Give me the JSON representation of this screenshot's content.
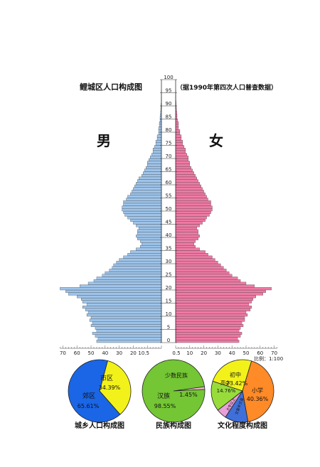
{
  "title": "鲤城区人口构成图",
  "subtitle": "（据1990年第四次人口普查数据）",
  "male_label": "男",
  "female_label": "女",
  "scale_label": "比例：1:100",
  "colors": {
    "male": "#9ec4ea",
    "female": "#ee7aa4",
    "bar_outline": "#333333",
    "urban": "#f2f21a",
    "rural": "#1a66e6",
    "minority": "#f0b8c8",
    "han": "#74c634",
    "junior": "#f2f21a",
    "senior": "#98dc3c",
    "primary": "#ff8a28",
    "college": "#e8a0d8",
    "illiterate": "#3f6fd9"
  },
  "chart_data": [
    {
      "type": "bar",
      "orientation": "horizontal-pyramid",
      "title": "鲤城区人口构成图",
      "subtitle": "（据1990年第四次人口普查数据）",
      "age_axis": {
        "ticks": [
          "0",
          "5",
          "10",
          "15",
          "20",
          "25",
          "30",
          "35",
          "40",
          "45",
          "50",
          "55",
          "60",
          "65",
          "70",
          "75",
          "80",
          "85",
          "90",
          "95",
          "100"
        ],
        "range": [
          0,
          100
        ]
      },
      "x_axis": {
        "left_ticks": [
          "70",
          "60",
          "50",
          "40",
          "30",
          "20",
          "10.5"
        ],
        "right_ticks": [
          "0.5",
          "10",
          "20",
          "30",
          "40",
          "50",
          "60",
          "70"
        ],
        "range": [
          0,
          75
        ]
      },
      "ages": [
        0,
        1,
        2,
        3,
        4,
        5,
        6,
        7,
        8,
        9,
        10,
        11,
        12,
        13,
        14,
        15,
        16,
        17,
        18,
        19,
        20,
        21,
        22,
        23,
        24,
        25,
        26,
        27,
        28,
        29,
        30,
        31,
        32,
        33,
        34,
        35,
        36,
        37,
        38,
        39,
        40,
        41,
        42,
        43,
        44,
        45,
        46,
        47,
        48,
        49,
        50,
        51,
        52,
        53,
        54,
        55,
        56,
        57,
        58,
        59,
        60,
        61,
        62,
        63,
        64,
        65,
        66,
        67,
        68,
        69,
        70,
        71,
        72,
        73,
        74,
        75,
        76,
        77,
        78,
        79,
        80,
        81,
        82,
        83,
        84,
        85,
        86,
        87,
        88,
        89,
        90,
        91,
        92,
        93,
        94,
        95,
        96,
        97,
        98,
        99,
        100
      ],
      "series": [
        {
          "name": "男",
          "values": [
            46,
            45,
            47,
            49,
            46,
            47,
            50,
            49,
            51,
            50,
            53,
            52,
            54,
            56,
            53,
            56,
            57,
            60,
            66,
            68,
            72,
            58,
            52,
            48,
            46,
            42,
            40,
            37,
            35,
            34,
            32,
            30,
            27,
            24,
            22,
            18,
            15,
            14,
            15,
            17,
            18,
            17,
            17,
            16,
            18,
            20,
            22,
            24,
            26,
            27,
            28,
            28,
            27,
            27,
            25,
            24,
            22,
            21,
            20,
            19,
            18,
            17,
            16,
            14,
            13,
            12,
            11,
            10,
            10,
            9,
            8,
            7,
            6,
            6,
            5,
            4,
            4,
            3,
            3,
            2,
            2,
            2,
            1.5,
            1.5,
            1,
            1,
            0.8,
            0.6,
            0.5,
            0.4,
            0.3,
            0.2,
            0.2,
            0.1,
            0.1,
            0.1,
            0,
            0,
            0,
            0,
            0
          ]
        },
        {
          "name": "女",
          "values": [
            45,
            44,
            46,
            47,
            45,
            46,
            48,
            47,
            49,
            49,
            51,
            50,
            53,
            54,
            52,
            54,
            55,
            57,
            62,
            64,
            68,
            56,
            50,
            46,
            44,
            40,
            38,
            36,
            34,
            32,
            30,
            28,
            26,
            23,
            21,
            17,
            14,
            13,
            14,
            16,
            17,
            16,
            16,
            15,
            17,
            19,
            21,
            22,
            24,
            25,
            26,
            26,
            25,
            25,
            23,
            22,
            21,
            20,
            19,
            18,
            17,
            16,
            15,
            14,
            13,
            12,
            11,
            10,
            10,
            9,
            9,
            8,
            7,
            7,
            6,
            5,
            5,
            4,
            4,
            3,
            3,
            2,
            2,
            2,
            1.5,
            1,
            1,
            0.8,
            0.6,
            0.5,
            0.4,
            0.3,
            0.2,
            0.2,
            0.1,
            0.1,
            0,
            0,
            0,
            0,
            0
          ]
        }
      ]
    },
    {
      "type": "pie",
      "title": "城乡人口构成图",
      "labels": [
        "市区",
        "郊区"
      ],
      "values": [
        34.39,
        65.61
      ],
      "value_labels": [
        "34.39%",
        "65.61%"
      ]
    },
    {
      "type": "pie",
      "title": "民族构成图",
      "labels": [
        "少数民族",
        "汉族"
      ],
      "values": [
        1.45,
        98.55
      ],
      "value_labels": [
        "1.45%",
        "98.55%"
      ]
    },
    {
      "type": "pie",
      "title": "文化程度构成图",
      "labels": [
        "初中",
        "小学",
        "文盲半文盲",
        "大专以上",
        "高中"
      ],
      "values": [
        23.42,
        40.36,
        11.4,
        5.0,
        14.76
      ],
      "value_labels": [
        "23.42%",
        "40.36%",
        "",
        "",
        "14.76%"
      ]
    }
  ]
}
